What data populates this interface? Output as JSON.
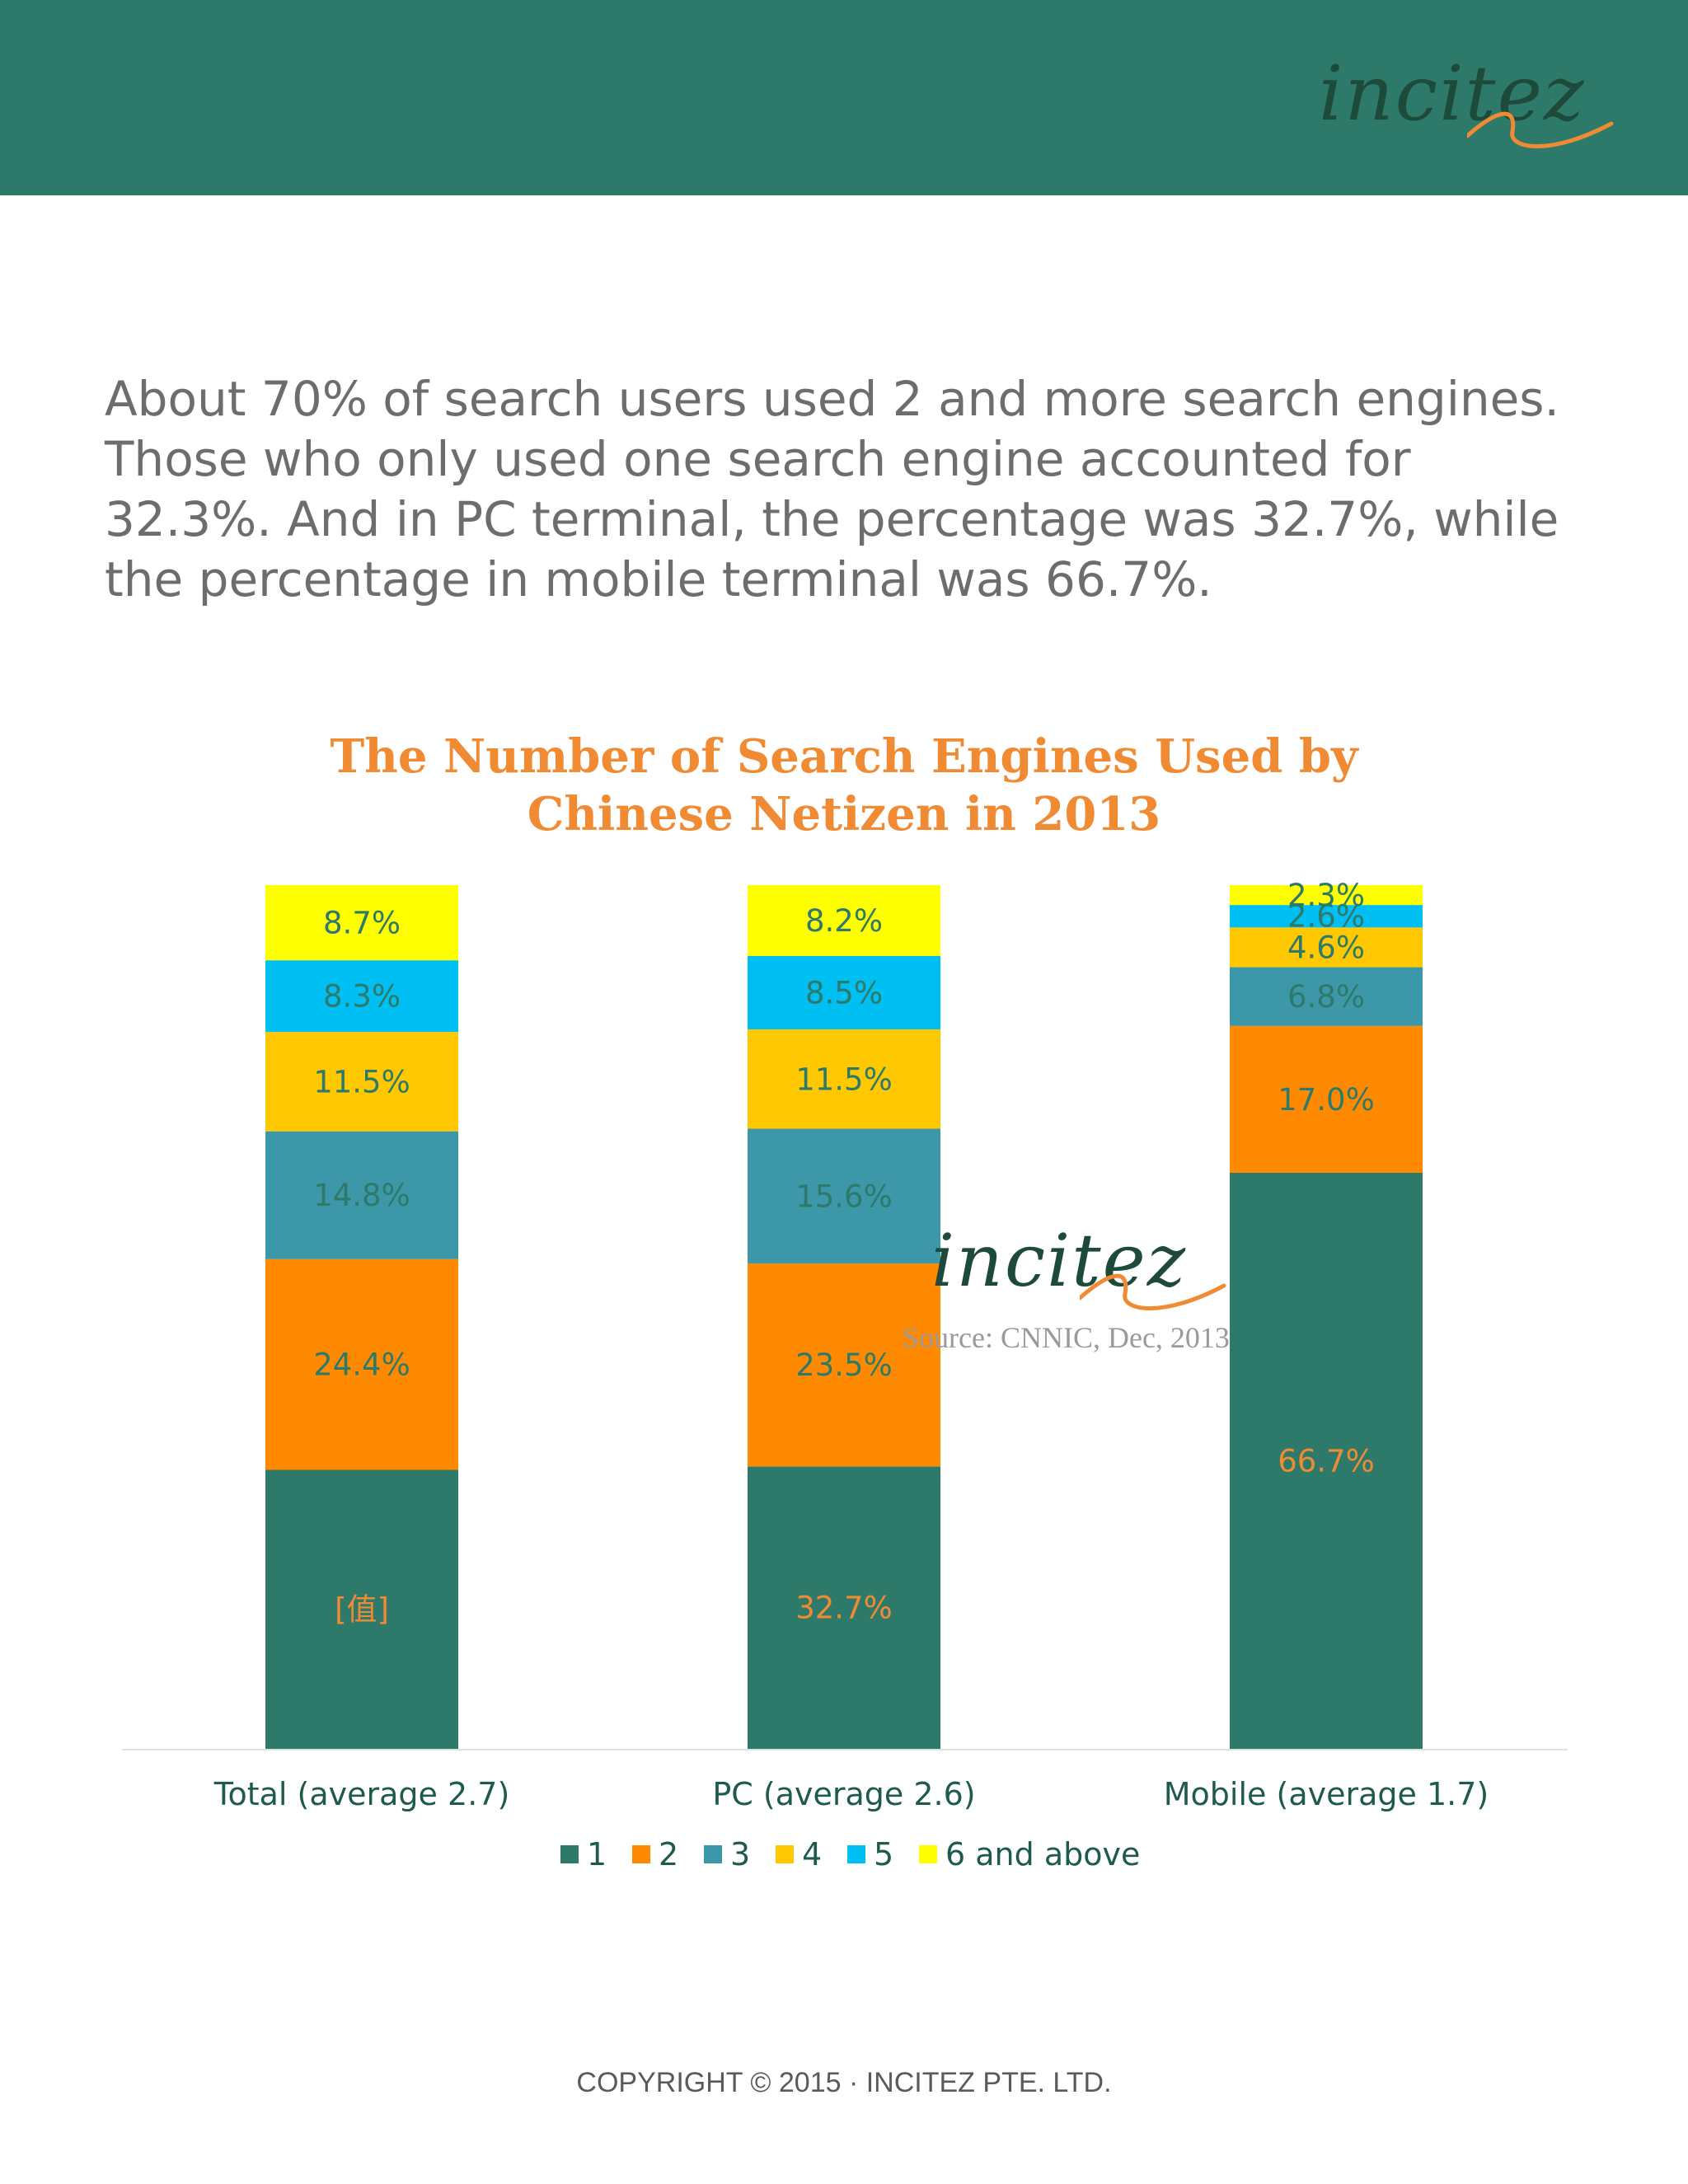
{
  "header": {
    "logo_text": "incitez"
  },
  "intro": {
    "paragraph": "About 70% of search users used 2 and more search engines. Those who only used one search engine accounted for 32.3%. And in PC terminal, the percentage was 32.7%, while the percentage in mobile terminal was 66.7%."
  },
  "watermark": {
    "logo_text": "incitez",
    "source": "Source: CNNIC, Dec, 2013"
  },
  "footer": {
    "copyright": "COPYRIGHT © 2015 · INCITEZ PTE. LTD."
  },
  "colors": {
    "header_band": "#2e7a6a",
    "title": "#f08a33"
  },
  "chart_data": {
    "type": "bar",
    "stacked": true,
    "title": "The Number of Search Engines Used by Chinese Netizen in 2013",
    "title_lines": [
      "The Number of Search Engines Used by",
      "Chinese Netizen in 2013"
    ],
    "categories": [
      "Total (average 2.7)",
      "PC (average 2.6)",
      "Mobile (average 1.7)"
    ],
    "ylim": [
      0,
      100
    ],
    "grid": false,
    "legend_position": "bottom",
    "series": [
      {
        "name": "1",
        "color": "#2e7a6a",
        "label_color": "#f08a33",
        "values": [
          32.3,
          32.7,
          66.7
        ],
        "labels": [
          "[值]",
          "32.7%",
          "66.7%"
        ]
      },
      {
        "name": "2",
        "color": "#ff8a00",
        "label_color": "#2e7a6a",
        "values": [
          24.4,
          23.5,
          17.0
        ],
        "labels": [
          "24.4%",
          "23.5%",
          "17.0%"
        ]
      },
      {
        "name": "3",
        "color": "#3c97a8",
        "label_color": "#2e7a6a",
        "values": [
          14.8,
          15.6,
          6.8
        ],
        "labels": [
          "14.8%",
          "15.6%",
          "6.8%"
        ]
      },
      {
        "name": "4",
        "color": "#ffc800",
        "label_color": "#2e7a6a",
        "values": [
          11.5,
          11.5,
          4.6
        ],
        "labels": [
          "11.5%",
          "11.5%",
          "4.6%"
        ]
      },
      {
        "name": "5",
        "color": "#00bff3",
        "label_color": "#2e7a6a",
        "values": [
          8.3,
          8.5,
          2.6
        ],
        "labels": [
          "8.3%",
          "8.5%",
          "2.6%"
        ]
      },
      {
        "name": "6 and above",
        "color": "#ffff00",
        "label_color": "#2e7a6a",
        "values": [
          8.7,
          8.2,
          2.3
        ],
        "labels": [
          "8.7%",
          "8.2%",
          "2.3%"
        ]
      }
    ]
  }
}
